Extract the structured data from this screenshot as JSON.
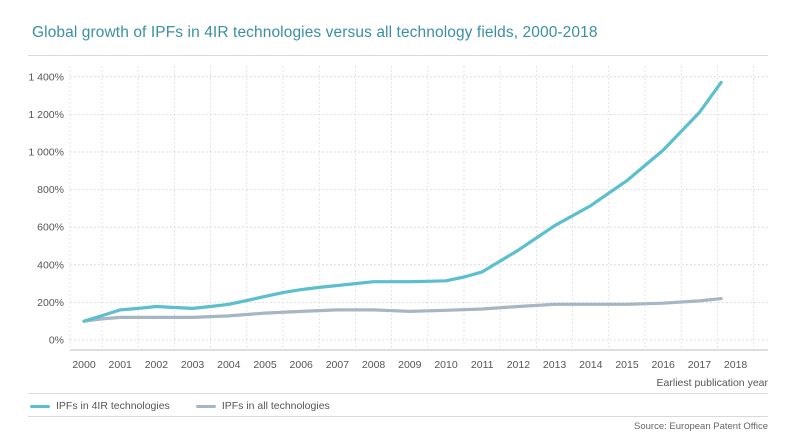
{
  "chart_data": {
    "type": "line",
    "title": "Global growth of IPFs in 4IR technologies versus all technology fields, 2000-2018",
    "xlabel": "Earliest publication year",
    "ylabel": "",
    "categories": [
      "2000",
      "2001",
      "2002",
      "2003",
      "2004",
      "2005",
      "2006",
      "2007",
      "2008",
      "2009",
      "2010",
      "2011",
      "2012",
      "2013",
      "2014",
      "2015",
      "2016",
      "2017",
      "2018"
    ],
    "y_ticks": [
      "0%",
      "200%",
      "400%",
      "600%",
      "800%",
      "1 000%",
      "1 200%",
      "1 400%"
    ],
    "y_tick_values": [
      0,
      200,
      400,
      600,
      800,
      1000,
      1200,
      1400
    ],
    "ylim": [
      0,
      1500
    ],
    "series": [
      {
        "name": "IPFs in 4IR technologies",
        "color": "#5bbfcf",
        "x": [
          2000,
          2000.5,
          2001,
          2001.5,
          2002,
          2002.5,
          2003,
          2003.5,
          2004,
          2004.5,
          2005,
          2005.5,
          2006,
          2006.5,
          2007,
          2007.5,
          2008,
          2008.5,
          2009,
          2009.5,
          2010,
          2010.5,
          2011,
          2012,
          2013,
          2014,
          2015,
          2016,
          2017,
          2017.6
        ],
        "values": [
          100,
          130,
          160,
          168,
          178,
          173,
          168,
          178,
          190,
          210,
          232,
          252,
          268,
          280,
          290,
          300,
          310,
          310,
          310,
          312,
          315,
          335,
          362,
          478,
          608,
          715,
          848,
          1010,
          1210,
          1370
        ]
      },
      {
        "name": "IPFs in all technologies",
        "color": "#a7b6c3",
        "x": [
          2000,
          2000.5,
          2001,
          2002,
          2003,
          2004,
          2005,
          2006,
          2007,
          2008,
          2009,
          2010,
          2011,
          2012,
          2013,
          2014,
          2015,
          2016,
          2017,
          2017.6
        ],
        "values": [
          100,
          112,
          120,
          120,
          120,
          128,
          143,
          152,
          160,
          160,
          152,
          158,
          165,
          178,
          190,
          190,
          190,
          196,
          208,
          220
        ]
      }
    ],
    "legend": [
      "IPFs in 4IR technologies",
      "IPFs in all technologies"
    ],
    "legend_position": "bottom-left",
    "grid": "dotted",
    "source": "Source: European Patent Office"
  }
}
